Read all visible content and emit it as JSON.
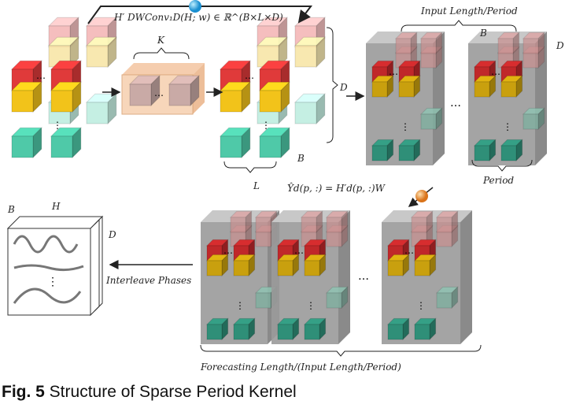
{
  "formulas": {
    "conv": "H′ DWConv₁D(H; w) ∈ ℝ^(B×L×D)",
    "linear": "Ŷd(p, :) = H′d(p, :)W"
  },
  "labels": {
    "K": "K",
    "D": "D",
    "L": "L",
    "B": "B",
    "H": "H",
    "input_period": "Input Length/Period",
    "period": "Period",
    "interleave": "Interleave Phases",
    "forecast": "Forecasting Length/(Input Length/Period)",
    "dots": "…",
    "vdots": "⋮"
  },
  "caption": {
    "fig": "Fig. 5",
    "text": " Structure of Sparse Period Kernel"
  },
  "colors": {
    "red": "#e03a3a",
    "yellow": "#f2c31a",
    "teal": "#4fc9a8",
    "pink": "#f4b8b8",
    "lightyellow": "#f8e6a8",
    "lightteal": "#bfeee0",
    "kernel": "#f6cfae",
    "panel": "#9a9a9a",
    "blue_ball": "#1aa0e0",
    "orange_ball": "#f08a2a"
  }
}
